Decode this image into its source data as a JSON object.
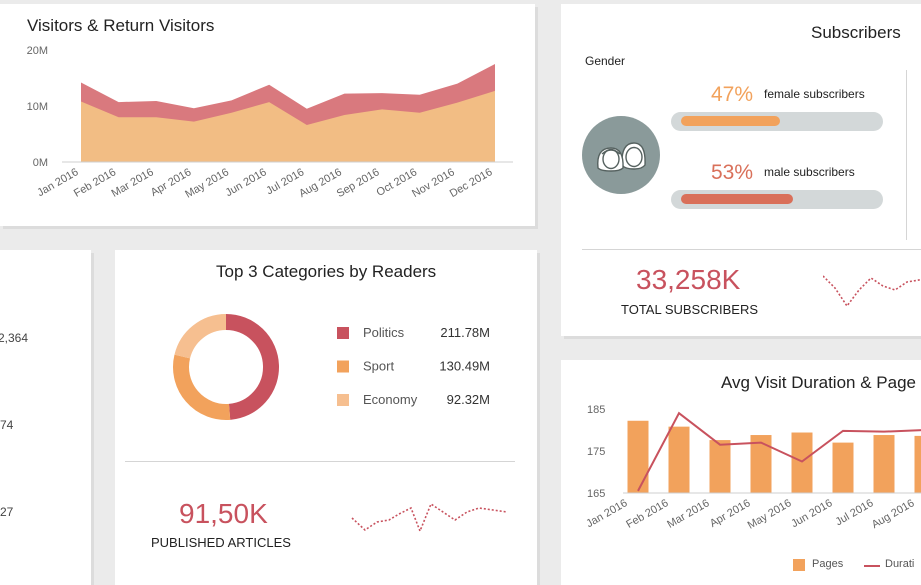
{
  "chart_data": [
    {
      "id": "visitors",
      "type": "area",
      "title": "Visitors & Return Visitors",
      "categories": [
        "Jan 2016",
        "Feb 2016",
        "Mar 2016",
        "Apr 2016",
        "May 2016",
        "Jun 2016",
        "Jul 2016",
        "Aug 2016",
        "Sep 2016",
        "Oct 2016",
        "Nov 2016",
        "Dec 2016"
      ],
      "ylim": [
        0,
        20
      ],
      "yticks": [
        "0M",
        "10M",
        "20M"
      ],
      "series": [
        {
          "values": [
            10.8,
            8.0,
            8.0,
            7.2,
            8.8,
            10.7,
            6.6,
            8.4,
            9.4,
            8.8,
            10.6,
            12.7
          ],
          "color": "#f2bd84"
        },
        {
          "values": [
            14.2,
            10.7,
            10.9,
            9.6,
            11.0,
            13.8,
            9.5,
            12.2,
            12.3,
            12.0,
            14.0,
            17.5
          ],
          "color": "#d9797e"
        }
      ]
    },
    {
      "id": "categories",
      "type": "pie",
      "title": "Top 3 Categories by Readers",
      "labels": [
        "Politics",
        "Sport",
        "Economy"
      ],
      "values": [
        211.78,
        130.49,
        92.32
      ],
      "value_labels": [
        "211.78M",
        "130.49M",
        "92.32M"
      ],
      "colors": [
        "#c8525e",
        "#f2a25c",
        "#f6bf90"
      ]
    },
    {
      "id": "duration",
      "type": "bar",
      "title": "Avg Visit Duration & Page",
      "categories": [
        "Jan 2016",
        "Feb 2016",
        "Mar 2016",
        "Apr 2016",
        "May 2016",
        "Jun 2016",
        "Jul 2016",
        "Aug 2016"
      ],
      "ylim": [
        165,
        185
      ],
      "yticks": [
        "165",
        "175",
        "185"
      ],
      "series": [
        {
          "name": "Pages",
          "type": "bar",
          "values": [
            182.2,
            180.8,
            177.6,
            178.8,
            179.4,
            177.0,
            178.8,
            178.6
          ],
          "color": "#f2a25c"
        },
        {
          "name": "Durati",
          "type": "line",
          "values": [
            165.5,
            184.0,
            176.5,
            177.0,
            172.5,
            179.8,
            179.6,
            180.0
          ],
          "color": "#c8525e"
        }
      ]
    }
  ],
  "subscribers": {
    "title": "Subscribers",
    "gender_label": "Gender",
    "female_pct": "47%",
    "female_label": "female subscribers",
    "female_value": 0.47,
    "male_pct": "53%",
    "male_label": "male subscribers",
    "male_value": 0.53,
    "total_value": "33,258K",
    "total_label": "TOTAL SUBSCRIBERS",
    "female_color": "#f2a25c",
    "male_color": "#d9705a",
    "icon": "people-icon"
  },
  "articles": {
    "value": "91,50K",
    "label": "PUBLISHED ARTICLES"
  },
  "left_panel": {
    "values": [
      "2,364",
      "74",
      "27"
    ]
  },
  "colors": {
    "accent_red": "#c8525e",
    "accent_orange": "#f2a25c",
    "sparkline": "#c8525e"
  }
}
